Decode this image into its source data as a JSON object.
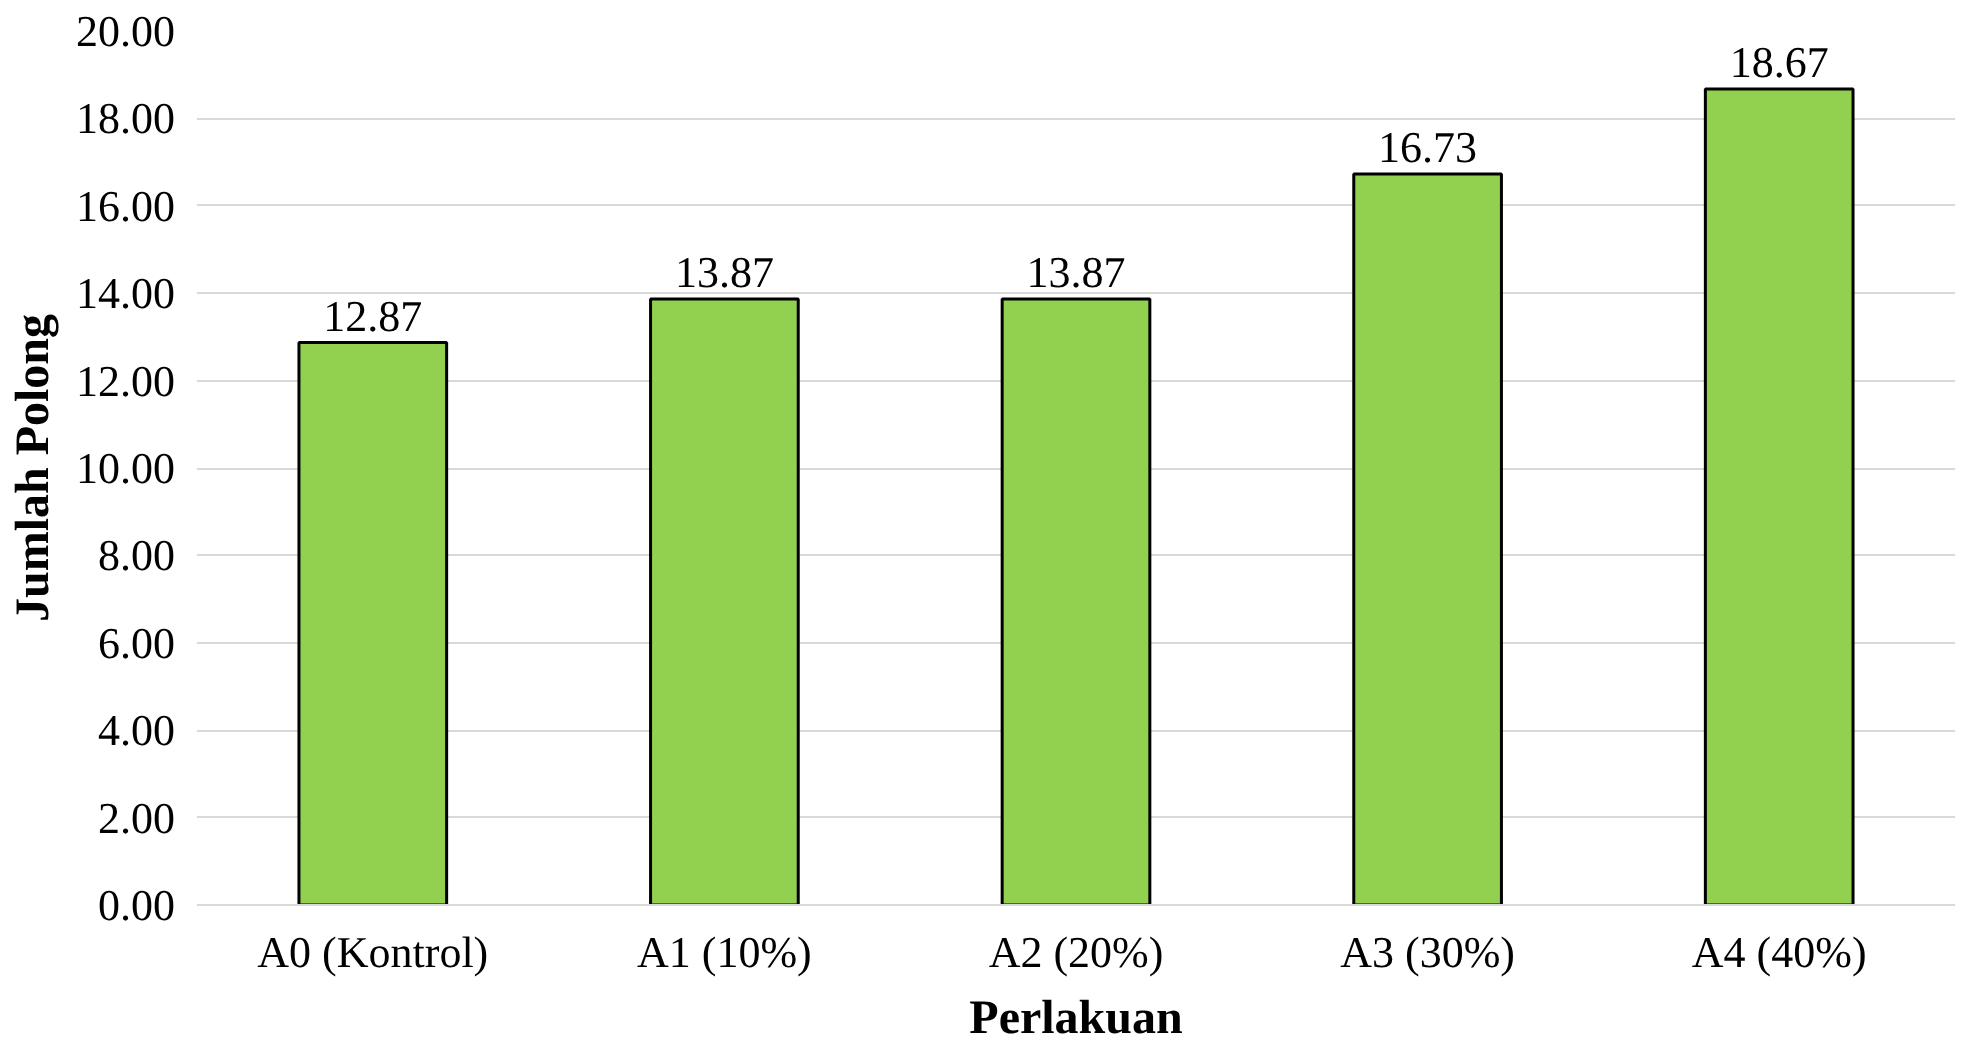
{
  "chart_data": {
    "type": "bar",
    "xlabel": "Perlakuan",
    "ylabel": "Jumlah Polong",
    "categories": [
      "A0 (Kontrol)",
      "A1 (10%)",
      "A2 (20%)",
      "A3 (30%)",
      "A4 (40%)"
    ],
    "values": [
      12.87,
      13.87,
      13.87,
      16.73,
      18.67
    ],
    "color": "#92d050",
    "data_labels": true,
    "ylim": [
      0,
      20
    ],
    "yticks": [
      {
        "value": 0,
        "label": "0.00"
      },
      {
        "value": 2,
        "label": "2.00"
      },
      {
        "value": 4,
        "label": "4.00"
      },
      {
        "value": 6,
        "label": "6.00"
      },
      {
        "value": 8,
        "label": "8.00"
      },
      {
        "value": 10,
        "label": "10.00"
      },
      {
        "value": 12,
        "label": "12.00"
      },
      {
        "value": 14,
        "label": "14.00"
      },
      {
        "value": 16,
        "label": "16.00"
      },
      {
        "value": 18,
        "label": "18.00"
      },
      {
        "value": 20,
        "label": "20.00"
      }
    ],
    "grid": "y"
  }
}
